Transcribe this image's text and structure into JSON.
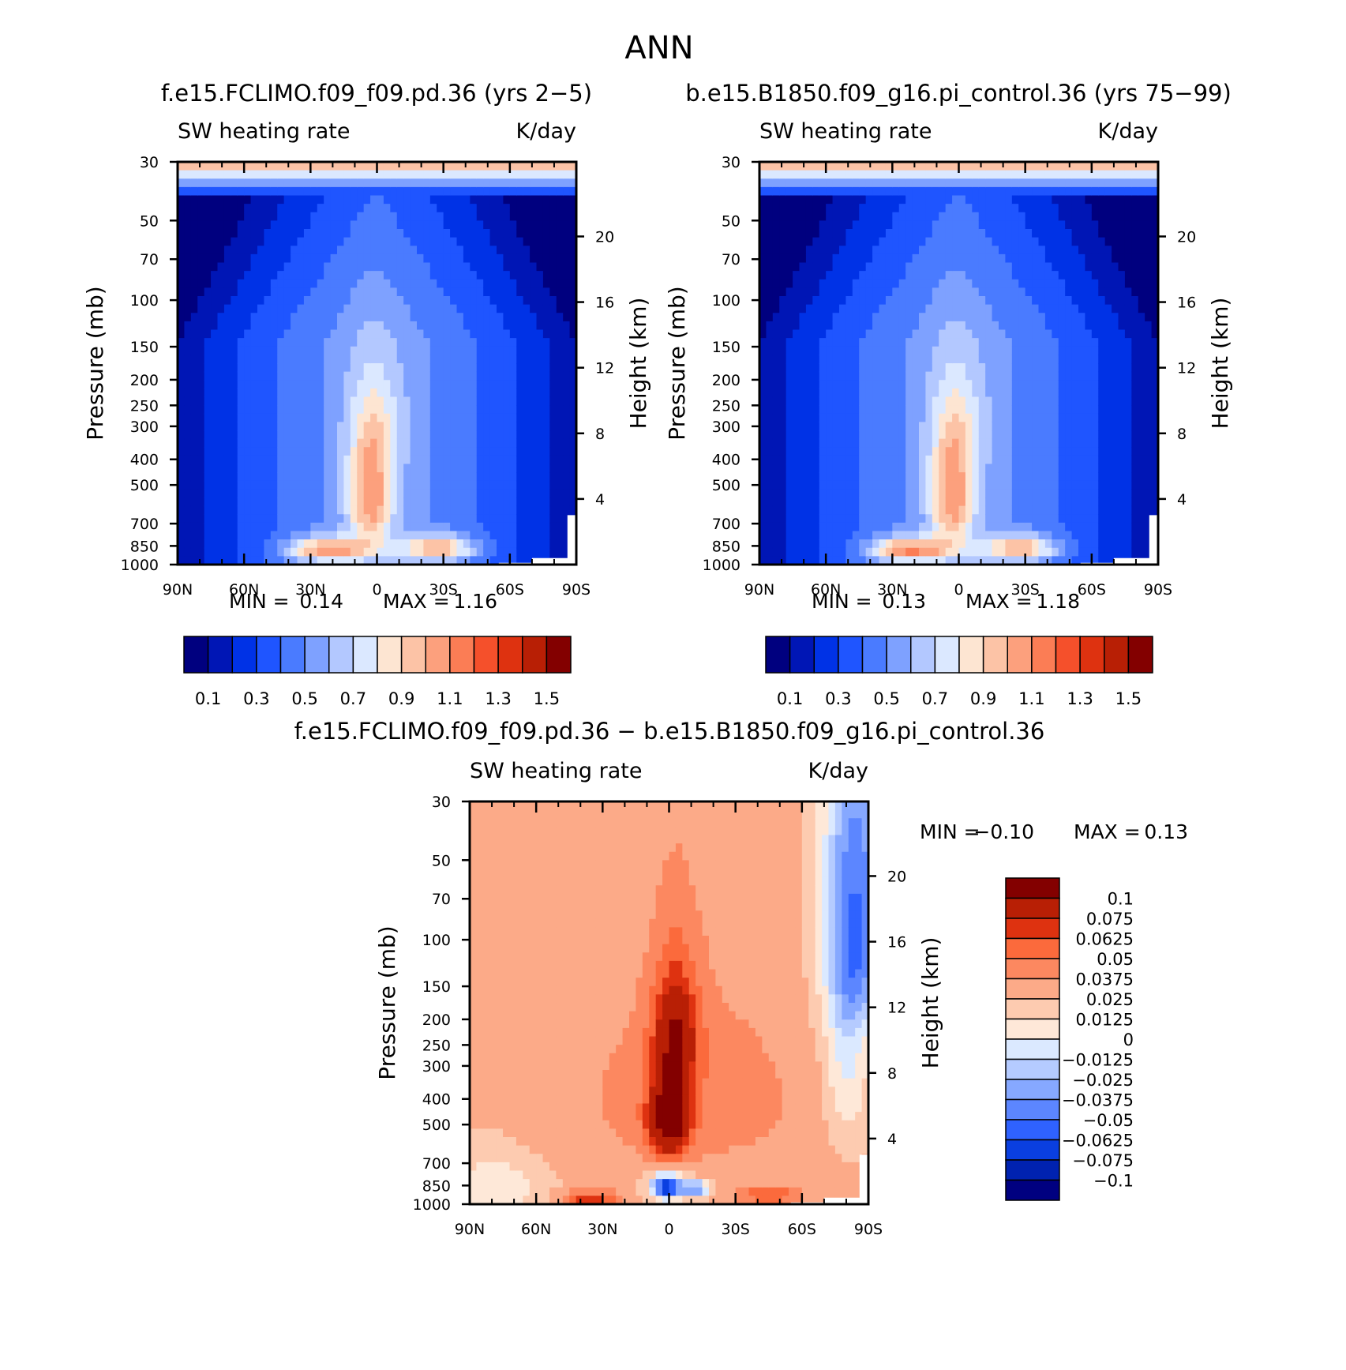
{
  "page_title": "ANN",
  "colors": {
    "axis": "#000000",
    "missing": "#ffffff"
  },
  "chart_data": [
    {
      "type": "heatmap",
      "id": "model-a",
      "title": "f.e15.FCLIMO.f09_f09.pd.36 (yrs 2-5)",
      "variable": "SW heating rate",
      "units": "K/day",
      "ylabel": "Pressure (mb)",
      "ylabel2": "Height (km)",
      "x_ticks": [
        "90N",
        "60N",
        "30N",
        "0",
        "30S",
        "60S",
        "90S"
      ],
      "y_ticks": [
        "30",
        "50",
        "70",
        "100",
        "150",
        "200",
        "250",
        "300",
        "400",
        "500",
        "700",
        "850",
        "1000"
      ],
      "y2_ticks": [
        "20",
        "16",
        "12",
        "8",
        "4"
      ],
      "min_label": "MIN =",
      "min_value": "0.14",
      "max_label": "MAX =",
      "max_value": "1.16",
      "colorbar_ticks": [
        "0.1",
        "0.3",
        "0.5",
        "0.7",
        "0.9",
        "1.1",
        "1.3",
        "1.5"
      ],
      "colorbar_colors": [
        "#00007f",
        "#0016b5",
        "#0032e6",
        "#1f55ff",
        "#4a7bff",
        "#7ea1ff",
        "#b3c8ff",
        "#dbe8ff",
        "#fde5d2",
        "#fcc3a6",
        "#fca07d",
        "#fb7d55",
        "#f5502b",
        "#de3210",
        "#b81f05",
        "#830000"
      ]
    },
    {
      "type": "heatmap",
      "id": "model-b",
      "title": "b.e15.B1850.f09_g16.pi_control.36 (yrs 75-99)",
      "variable": "SW heating rate",
      "units": "K/day",
      "ylabel": "Pressure (mb)",
      "ylabel2": "Height (km)",
      "x_ticks": [
        "90N",
        "60N",
        "30N",
        "0",
        "30S",
        "60S",
        "90S"
      ],
      "y_ticks": [
        "30",
        "50",
        "70",
        "100",
        "150",
        "200",
        "250",
        "300",
        "400",
        "500",
        "700",
        "850",
        "1000"
      ],
      "y2_ticks": [
        "20",
        "16",
        "12",
        "8",
        "4"
      ],
      "min_label": "MIN =",
      "min_value": "0.13",
      "max_label": "MAX =",
      "max_value": "1.18",
      "colorbar_ticks": [
        "0.1",
        "0.3",
        "0.5",
        "0.7",
        "0.9",
        "1.1",
        "1.3",
        "1.5"
      ],
      "colorbar_colors": [
        "#00007f",
        "#0016b5",
        "#0032e6",
        "#1f55ff",
        "#4a7bff",
        "#7ea1ff",
        "#b3c8ff",
        "#dbe8ff",
        "#fde5d2",
        "#fcc3a6",
        "#fca07d",
        "#fb7d55",
        "#f5502b",
        "#de3210",
        "#b81f05",
        "#830000"
      ]
    },
    {
      "type": "heatmap",
      "id": "difference",
      "title": "f.e15.FCLIMO.f09_f09.pd.36 - b.e15.B1850.f09_g16.pi_control.36",
      "variable": "SW heating rate",
      "units": "K/day",
      "ylabel": "Pressure (mb)",
      "ylabel2": "Height (km)",
      "x_ticks": [
        "90N",
        "60N",
        "30N",
        "0",
        "30S",
        "60S",
        "90S"
      ],
      "y_ticks": [
        "30",
        "50",
        "70",
        "100",
        "150",
        "200",
        "250",
        "300",
        "400",
        "500",
        "700",
        "850",
        "1000"
      ],
      "y2_ticks": [
        "20",
        "16",
        "12",
        "8",
        "4"
      ],
      "min_label": "MIN =",
      "min_value": "-0.10",
      "max_label": "MAX =",
      "max_value": "0.13",
      "colorbar_ticks": [
        "0.1",
        "0.075",
        "0.0625",
        "0.05",
        "0.0375",
        "0.025",
        "0.0125",
        "0",
        "-0.0125",
        "-0.025",
        "-0.0375",
        "-0.05",
        "-0.0625",
        "-0.075",
        "-0.1"
      ],
      "colorbar_colors": [
        "#830000",
        "#b81f05",
        "#de3210",
        "#fb6a3c",
        "#fc8860",
        "#fcaa88",
        "#fdcbb0",
        "#fee8d8",
        "#dbe9ff",
        "#b5cbff",
        "#86a8ff",
        "#5c86ff",
        "#2f62ff",
        "#0a3fe0",
        "#0022b0",
        "#000080"
      ]
    }
  ]
}
